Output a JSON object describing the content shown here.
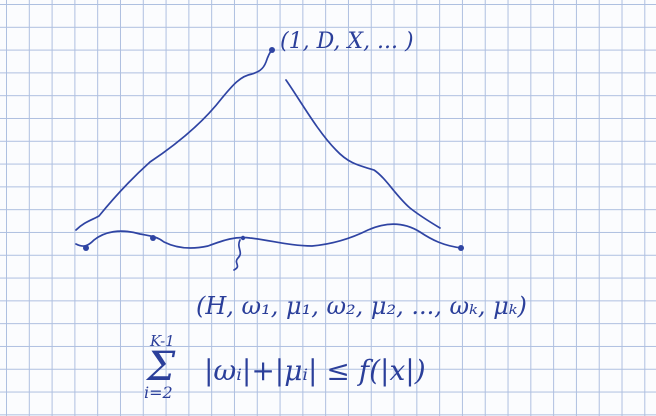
{
  "annotations": {
    "peak_label": "(1, D, X, ... )",
    "tuple_label": "(H, ω₁, μ₁, ω₂, μ₂, ..., ωₖ, μₖ)",
    "sum_upper_limit": "K-1",
    "sum_symbol": "Σ",
    "sum_lower_limit": "i=2",
    "inequality": "|ωᵢ|+|μᵢ| ≤ f(|x|)"
  },
  "colors": {
    "ink": "#2f44a3",
    "grid": "#aebfe0",
    "paper": "#fbfcfe"
  }
}
